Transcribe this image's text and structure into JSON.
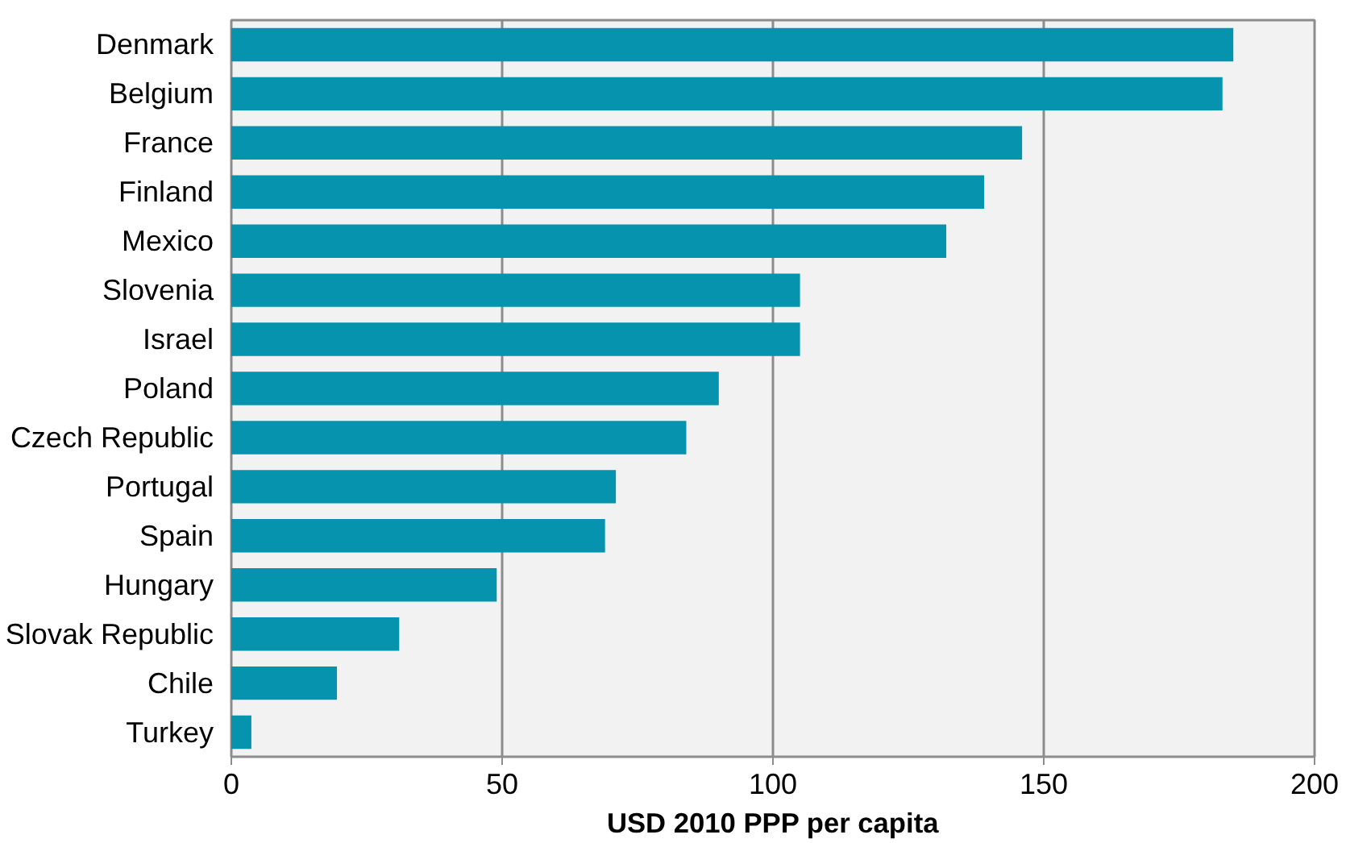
{
  "chart_data": {
    "type": "bar",
    "orientation": "horizontal",
    "xlabel": "USD 2010 PPP per capita",
    "categories": [
      "Denmark",
      "Belgium",
      "France",
      "Finland",
      "Mexico",
      "Slovenia",
      "Israel",
      "Poland",
      "Czech Republic",
      "Portugal",
      "Spain",
      "Hungary",
      "Slovak Republic",
      "Chile",
      "Turkey"
    ],
    "values": [
      185,
      183,
      146,
      139,
      132,
      105,
      105,
      90,
      84,
      71,
      69,
      49,
      31,
      19.5,
      3.7
    ],
    "color": "#0593ae",
    "xlim": [
      0,
      200
    ],
    "xticks": [
      0,
      50,
      100,
      150,
      200
    ],
    "grid": "x"
  }
}
